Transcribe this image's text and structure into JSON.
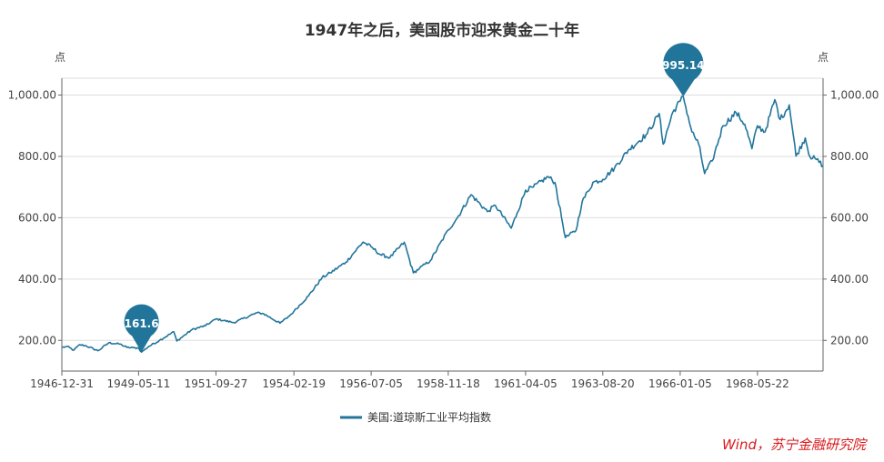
{
  "chart_data": {
    "type": "line",
    "title": "1947年之后，美国股市迎来黄金二十年",
    "unit_left": "点",
    "unit_right": "点",
    "source_note": "Wind，苏宁金融研究院",
    "xlabel": "",
    "ylabel": "",
    "ylim": [
      100,
      1055
    ],
    "y_ticks": [
      200,
      400,
      600,
      800,
      1000
    ],
    "y_tick_labels": [
      "200.00",
      "400.00",
      "600.00",
      "800.00",
      "1,000.00"
    ],
    "x_range": [
      "1946-12-31",
      "1970-05-29"
    ],
    "x_ticks": [
      "1946-12-31",
      "1949-05-11",
      "1951-09-27",
      "1954-02-19",
      "1956-07-05",
      "1958-11-18",
      "1961-04-05",
      "1963-08-20",
      "1966-01-05",
      "1968-05-22"
    ],
    "grid": true,
    "legend_position": "bottom",
    "series": [
      {
        "name": "美国:道琼斯工业平均指数",
        "color": "#21759b",
        "points": [
          [
            "1946-12-31",
            177
          ],
          [
            "1947-03-01",
            180
          ],
          [
            "1947-05-15",
            168
          ],
          [
            "1947-07-20",
            186
          ],
          [
            "1947-10-01",
            182
          ],
          [
            "1948-02-10",
            166
          ],
          [
            "1948-06-10",
            192
          ],
          [
            "1948-10-15",
            188
          ],
          [
            "1948-12-31",
            177
          ],
          [
            "1949-03-15",
            176
          ],
          [
            "1949-05-11",
            175
          ],
          [
            "1949-06-13",
            161.6
          ],
          [
            "1949-09-01",
            180
          ],
          [
            "1949-12-31",
            200
          ],
          [
            "1950-06-10",
            228
          ],
          [
            "1950-07-15",
            198
          ],
          [
            "1950-12-31",
            235
          ],
          [
            "1951-06-01",
            248
          ],
          [
            "1951-09-27",
            270
          ],
          [
            "1952-04-15",
            258
          ],
          [
            "1952-12-31",
            290
          ],
          [
            "1953-03-15",
            287
          ],
          [
            "1953-09-15",
            256
          ],
          [
            "1953-12-31",
            280
          ],
          [
            "1954-02-19",
            295
          ],
          [
            "1954-08-01",
            345
          ],
          [
            "1954-12-31",
            404
          ],
          [
            "1955-04-01",
            420
          ],
          [
            "1955-09-26",
            455
          ],
          [
            "1955-12-31",
            488
          ],
          [
            "1956-04-06",
            521
          ],
          [
            "1956-07-05",
            505
          ],
          [
            "1956-10-15",
            480
          ],
          [
            "1957-02-01",
            470
          ],
          [
            "1957-07-12",
            520
          ],
          [
            "1957-10-22",
            420
          ],
          [
            "1957-12-31",
            435
          ],
          [
            "1958-05-01",
            460
          ],
          [
            "1958-11-18",
            560
          ],
          [
            "1959-03-01",
            600
          ],
          [
            "1959-08-01",
            675
          ],
          [
            "1960-02-01",
            620
          ],
          [
            "1960-05-01",
            640
          ],
          [
            "1960-10-25",
            566
          ],
          [
            "1960-12-31",
            615
          ],
          [
            "1961-04-05",
            690
          ],
          [
            "1961-07-01",
            700
          ],
          [
            "1961-12-13",
            734
          ],
          [
            "1962-03-01",
            715
          ],
          [
            "1962-06-26",
            535
          ],
          [
            "1962-10-23",
            558
          ],
          [
            "1962-12-31",
            652
          ],
          [
            "1963-05-01",
            715
          ],
          [
            "1963-08-20",
            725
          ],
          [
            "1963-12-31",
            763
          ],
          [
            "1964-06-01",
            820
          ],
          [
            "1964-12-31",
            874
          ],
          [
            "1965-05-14",
            940
          ],
          [
            "1965-06-28",
            840
          ],
          [
            "1965-10-15",
            945
          ],
          [
            "1966-01-05",
            980
          ],
          [
            "1966-02-09",
            995.14
          ],
          [
            "1966-05-17",
            880
          ],
          [
            "1966-08-01",
            840
          ],
          [
            "1966-10-07",
            744
          ],
          [
            "1966-12-31",
            785
          ],
          [
            "1967-05-01",
            900
          ],
          [
            "1967-09-25",
            943
          ],
          [
            "1967-12-31",
            905
          ],
          [
            "1968-03-21",
            825
          ],
          [
            "1968-05-22",
            900
          ],
          [
            "1968-08-15",
            880
          ],
          [
            "1968-12-03",
            985
          ],
          [
            "1969-02-01",
            920
          ],
          [
            "1969-05-14",
            968
          ],
          [
            "1969-07-29",
            801
          ],
          [
            "1969-11-10",
            860
          ],
          [
            "1969-12-31",
            800
          ],
          [
            "1970-03-15",
            790
          ],
          [
            "1970-05-29",
            770
          ]
        ]
      }
    ],
    "annotations": [
      {
        "label": "161.6",
        "date": "1949-06-13",
        "value": 161.6,
        "kind": "min"
      },
      {
        "label": "995.14",
        "date": "1966-02-09",
        "value": 995.14,
        "kind": "max"
      }
    ]
  }
}
